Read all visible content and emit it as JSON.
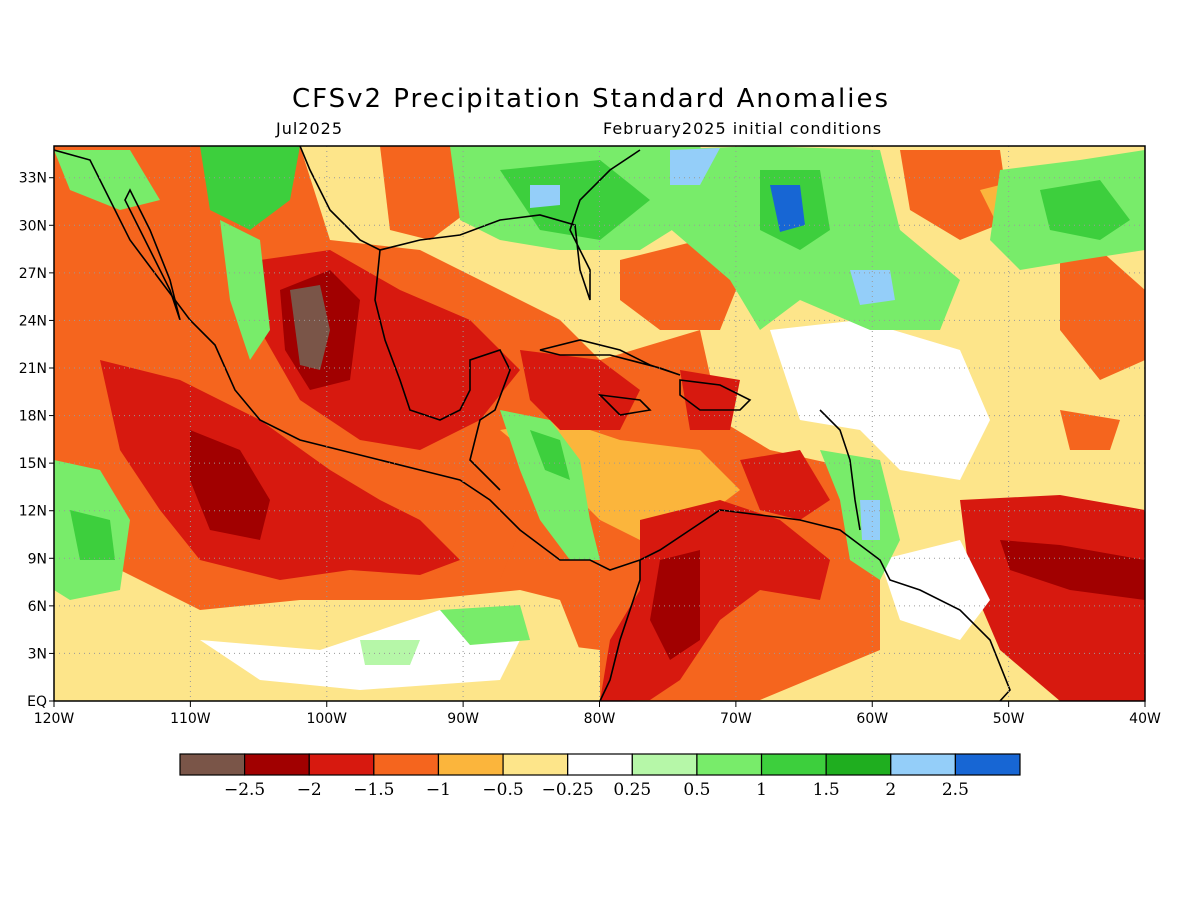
{
  "header": {
    "title": "CFSv2 Precipitation Standard Anomalies",
    "target_month": "Jul2025",
    "initial_conditions": "February2025 initial conditions"
  },
  "map": {
    "lon_range": [
      -120,
      -40
    ],
    "lat_range": [
      0,
      35
    ],
    "lon_ticks": [
      "120W",
      "110W",
      "100W",
      "90W",
      "80W",
      "70W",
      "60W",
      "50W",
      "40W"
    ],
    "lat_ticks": [
      "EQ",
      "3N",
      "6N",
      "9N",
      "12N",
      "15N",
      "18N",
      "21N",
      "24N",
      "27N",
      "30N",
      "33N"
    ],
    "grid": true,
    "colorbar": {
      "colors": [
        "#7a5548",
        "#a10000",
        "#d7190f",
        "#f5651e",
        "#fbb53c",
        "#fde58a",
        "#ffffff",
        "#b6f7a8",
        "#78ec6a",
        "#3dcf3d",
        "#1fae1f",
        "#94cef9",
        "#1766d4"
      ],
      "labels": [
        "−2.5",
        "−2",
        "−1.5",
        "−1",
        "−0.5",
        "−0.25",
        "0.25",
        "0.5",
        "1",
        "1.5",
        "2",
        "2.5"
      ]
    }
  }
}
